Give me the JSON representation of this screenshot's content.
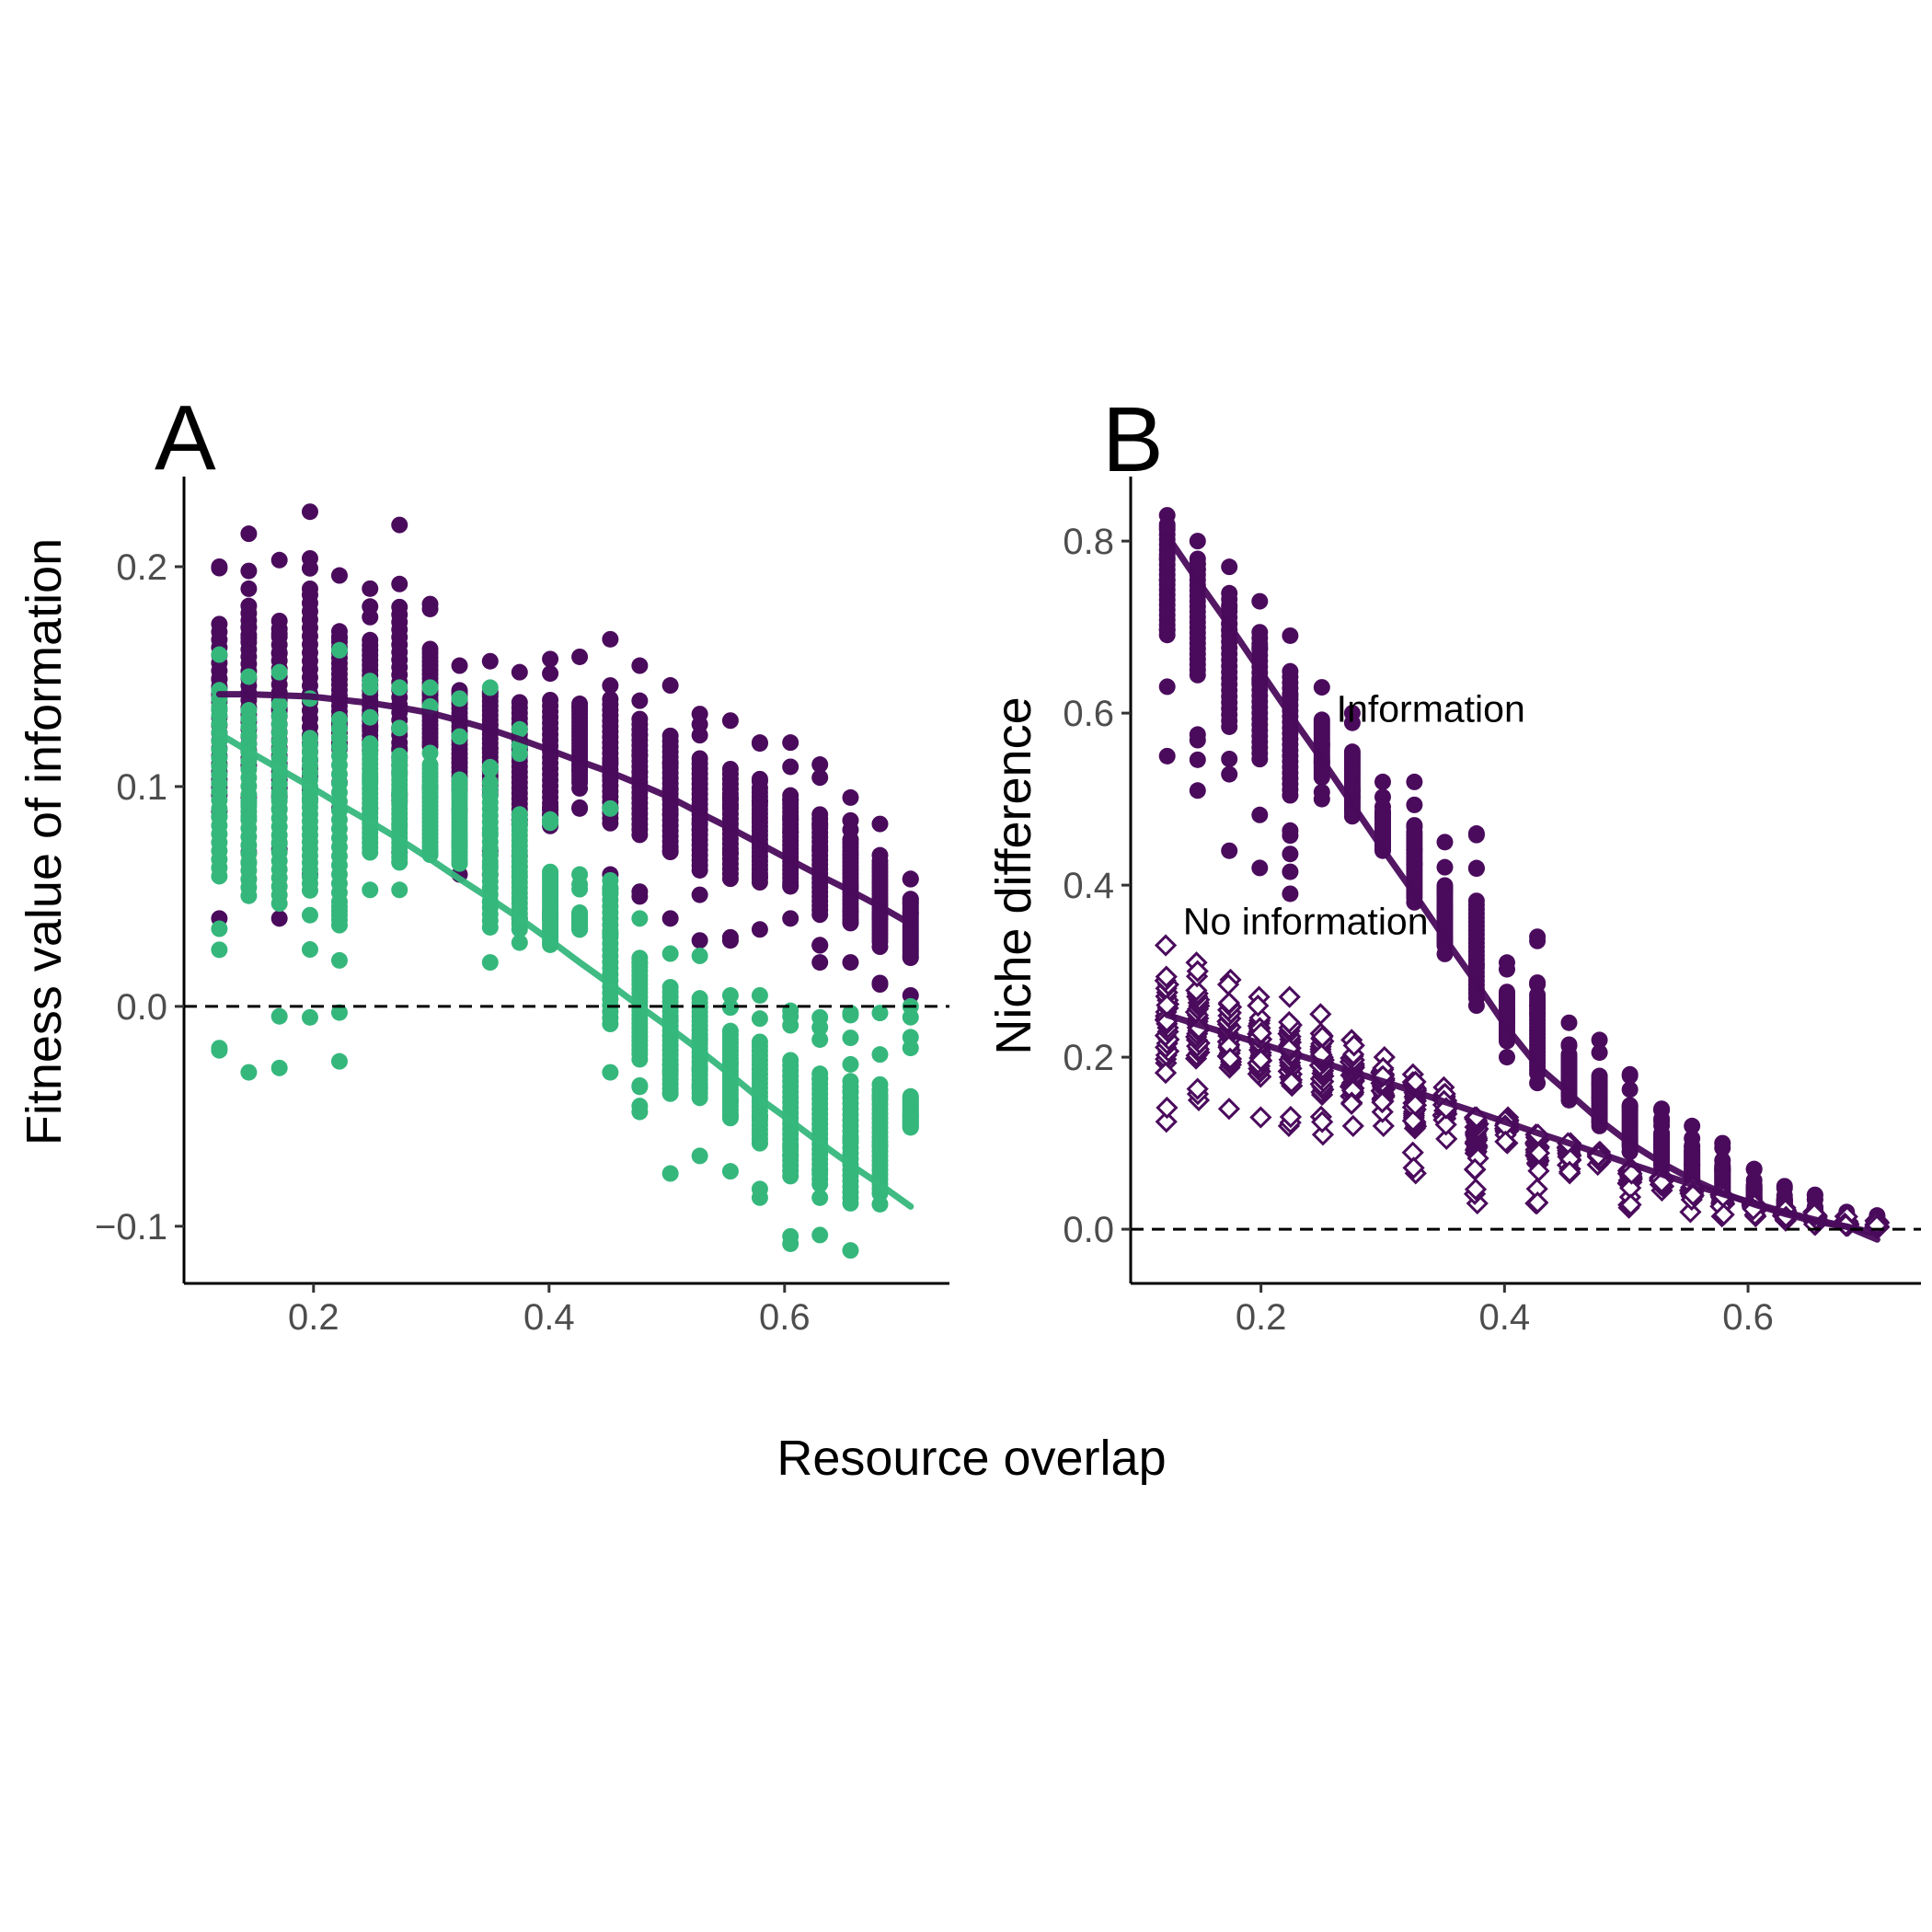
{
  "xlabel": "Resource overlap",
  "colors": {
    "information": "#4a0b5c",
    "no_information": "#35b77c"
  },
  "chart_data": [
    {
      "panel": "A",
      "type": "scatter",
      "ylabel": "Fitness value of information",
      "xlim": [
        0.09,
        0.74
      ],
      "ylim": [
        -0.126,
        0.241
      ],
      "xticks": [
        0.2,
        0.4,
        0.6
      ],
      "xtick_labels": [
        "0.2",
        "0.4",
        "0.6"
      ],
      "yticks": [
        -0.1,
        0.0,
        0.1,
        0.2
      ],
      "ytick_labels": [
        "−0.1",
        "0.0",
        "0.1",
        "0.2"
      ],
      "hline": 0.0,
      "x": [
        0.12,
        0.145,
        0.171,
        0.197,
        0.222,
        0.248,
        0.273,
        0.299,
        0.324,
        0.35,
        0.375,
        0.401,
        0.426,
        0.452,
        0.477,
        0.503,
        0.528,
        0.554,
        0.579,
        0.605,
        0.63,
        0.656,
        0.681,
        0.707
      ],
      "series": [
        {
          "color": "#4a0b5c",
          "marker": "filled-circle",
          "y_min": [
            0.04,
            0.07,
            0.04,
            0.06,
            0.09,
            0.09,
            0.07,
            0.1,
            0.06,
            0.06,
            0.04,
            0.04,
            0.09,
            0.06,
            0.05,
            0.04,
            0.03,
            0.03,
            0.035,
            0.04,
            0.02,
            0.02,
            0.01,
            0.005
          ],
          "y_max": [
            0.2,
            0.215,
            0.203,
            0.225,
            0.196,
            0.19,
            0.219,
            0.183,
            0.155,
            0.157,
            0.152,
            0.158,
            0.159,
            0.167,
            0.155,
            0.146,
            0.133,
            0.13,
            0.12,
            0.12,
            0.11,
            0.095,
            0.083,
            0.058
          ],
          "fit_y": [
            0.142,
            0.142,
            0.1415,
            0.141,
            0.1395,
            0.138,
            0.136,
            0.1335,
            0.13,
            0.126,
            0.1215,
            0.1165,
            0.1115,
            0.1065,
            0.101,
            0.095,
            0.088,
            0.081,
            0.074,
            0.0665,
            0.0595,
            0.0525,
            0.0455,
            0.0375
          ]
        },
        {
          "color": "#35b77c",
          "marker": "filled-circle",
          "y_min": [
            -0.02,
            -0.03,
            -0.028,
            -0.005,
            -0.025,
            0.053,
            0.053,
            0.069,
            0.065,
            0.02,
            0.029,
            0.028,
            0.035,
            -0.03,
            -0.048,
            -0.076,
            -0.068,
            -0.075,
            -0.087,
            -0.108,
            -0.104,
            -0.111,
            -0.09,
            -0.055
          ],
          "y_max": [
            0.16,
            0.15,
            0.152,
            0.14,
            0.162,
            0.148,
            0.145,
            0.145,
            0.14,
            0.145,
            0.126,
            0.085,
            0.06,
            0.09,
            0.04,
            0.024,
            0.023,
            0.005,
            0.005,
            -0.002,
            -0.005,
            -0.003,
            -0.003,
            0.0
          ],
          "fit_y": [
            0.124,
            0.116,
            0.108,
            0.1,
            0.092,
            0.084,
            0.076,
            0.067,
            0.058,
            0.049,
            0.04,
            0.03,
            0.02,
            0.01,
            0.0,
            -0.01,
            -0.02,
            -0.031,
            -0.042,
            -0.052,
            -0.062,
            -0.072,
            -0.081,
            -0.091
          ]
        }
      ]
    },
    {
      "panel": "B",
      "type": "scatter",
      "ylabel": "Niche difference",
      "xlim": [
        0.093,
        0.742
      ],
      "ylim": [
        -0.063,
        0.875
      ],
      "xticks": [
        0.2,
        0.4,
        0.6
      ],
      "xtick_labels": [
        "0.2",
        "0.4",
        "0.6"
      ],
      "yticks": [
        0.0,
        0.2,
        0.4,
        0.6,
        0.8
      ],
      "ytick_labels": [
        "0.0",
        "0.2",
        "0.4",
        "0.6",
        "0.8"
      ],
      "hline": 0.0,
      "x": [
        0.123,
        0.148,
        0.174,
        0.199,
        0.224,
        0.25,
        0.275,
        0.3,
        0.326,
        0.351,
        0.377,
        0.402,
        0.427,
        0.453,
        0.478,
        0.503,
        0.529,
        0.554,
        0.579,
        0.605,
        0.63,
        0.655,
        0.681,
        0.706
      ],
      "series": [
        {
          "name": "Information",
          "label_at": [
            0.262,
            0.59
          ],
          "color": "#4a0b5c",
          "marker": "filled-circle",
          "y_min": [
            0.55,
            0.51,
            0.44,
            0.42,
            0.39,
            0.5,
            0.48,
            0.44,
            0.38,
            0.32,
            0.26,
            0.2,
            0.17,
            0.15,
            0.12,
            0.09,
            0.07,
            0.05,
            0.04,
            0.03,
            0.02,
            0.015,
            0.008,
            0.003
          ],
          "y_max": [
            0.83,
            0.8,
            0.77,
            0.73,
            0.69,
            0.63,
            0.6,
            0.52,
            0.52,
            0.45,
            0.46,
            0.31,
            0.34,
            0.24,
            0.22,
            0.18,
            0.14,
            0.12,
            0.1,
            0.07,
            0.05,
            0.04,
            0.02,
            0.016
          ],
          "fit_y": [
            0.806,
            0.754,
            0.702,
            0.65,
            0.598,
            0.546,
            0.494,
            0.442,
            0.39,
            0.338,
            0.286,
            0.234,
            0.19,
            0.158,
            0.127,
            0.1,
            0.077,
            0.058,
            0.042,
            0.029,
            0.018,
            0.009,
            0.003,
            -0.012
          ]
        },
        {
          "name": "No information",
          "label_at": [
            0.136,
            0.343
          ],
          "color": "#4a0b5c",
          "marker": "open-diamond",
          "y_min": [
            0.125,
            0.15,
            0.14,
            0.13,
            0.12,
            0.11,
            0.12,
            0.12,
            0.065,
            0.105,
            0.03,
            0.1,
            0.03,
            0.065,
            0.075,
            0.025,
            0.045,
            0.02,
            0.015,
            0.015,
            0.01,
            0.005,
            0.004,
            0.002
          ],
          "y_max": [
            0.33,
            0.31,
            0.29,
            0.27,
            0.27,
            0.25,
            0.22,
            0.2,
            0.18,
            0.165,
            0.13,
            0.13,
            0.11,
            0.1,
            0.09,
            0.07,
            0.06,
            0.05,
            0.04,
            0.03,
            0.025,
            0.02,
            0.015,
            0.01
          ],
          "fit_y": [
            0.249,
            0.238,
            0.227,
            0.216,
            0.205,
            0.194,
            0.183,
            0.172,
            0.16,
            0.148,
            0.136,
            0.124,
            0.112,
            0.1,
            0.088,
            0.076,
            0.064,
            0.052,
            0.041,
            0.03,
            0.02,
            0.011,
            0.003,
            -0.005
          ]
        }
      ]
    }
  ]
}
